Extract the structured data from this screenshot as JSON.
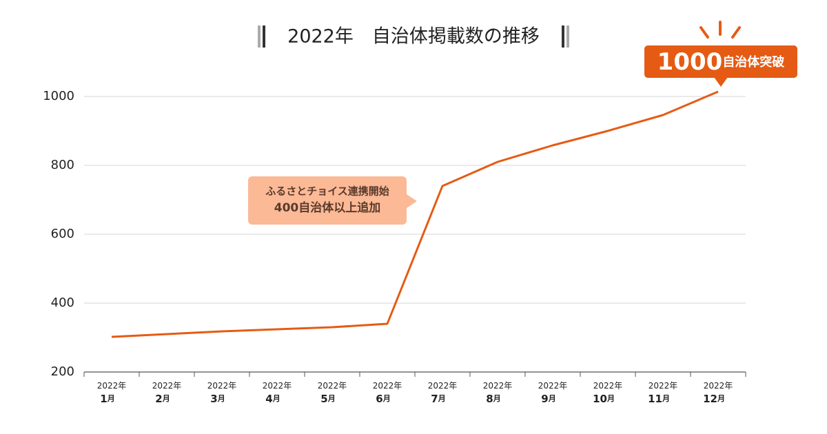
{
  "chart_data": {
    "type": "line",
    "title": "2022年　自治体掲載数の推移",
    "categories": [
      "2022年1月",
      "2022年2月",
      "2022年3月",
      "2022年4月",
      "2022年5月",
      "2022年6月",
      "2022年7月",
      "2022年8月",
      "2022年9月",
      "2022年10月",
      "2022年11月",
      "2022年12月"
    ],
    "series": [
      {
        "color": "#e55b13",
        "values": [
          302,
          310,
          318,
          324,
          330,
          340,
          740,
          810,
          858,
          900,
          946,
          1014
        ]
      }
    ],
    "ylim": [
      200,
      1100
    ],
    "yticks": [
      200,
      400,
      600,
      800,
      1000
    ],
    "grid": true,
    "annotations": [
      {
        "lines": [
          "ふるさとチョイス連携開始",
          "400自治体以上追加"
        ],
        "color": "#fbb996"
      },
      {
        "lines": [
          "1000自治体突破"
        ],
        "color": "#e55b13"
      }
    ]
  }
}
